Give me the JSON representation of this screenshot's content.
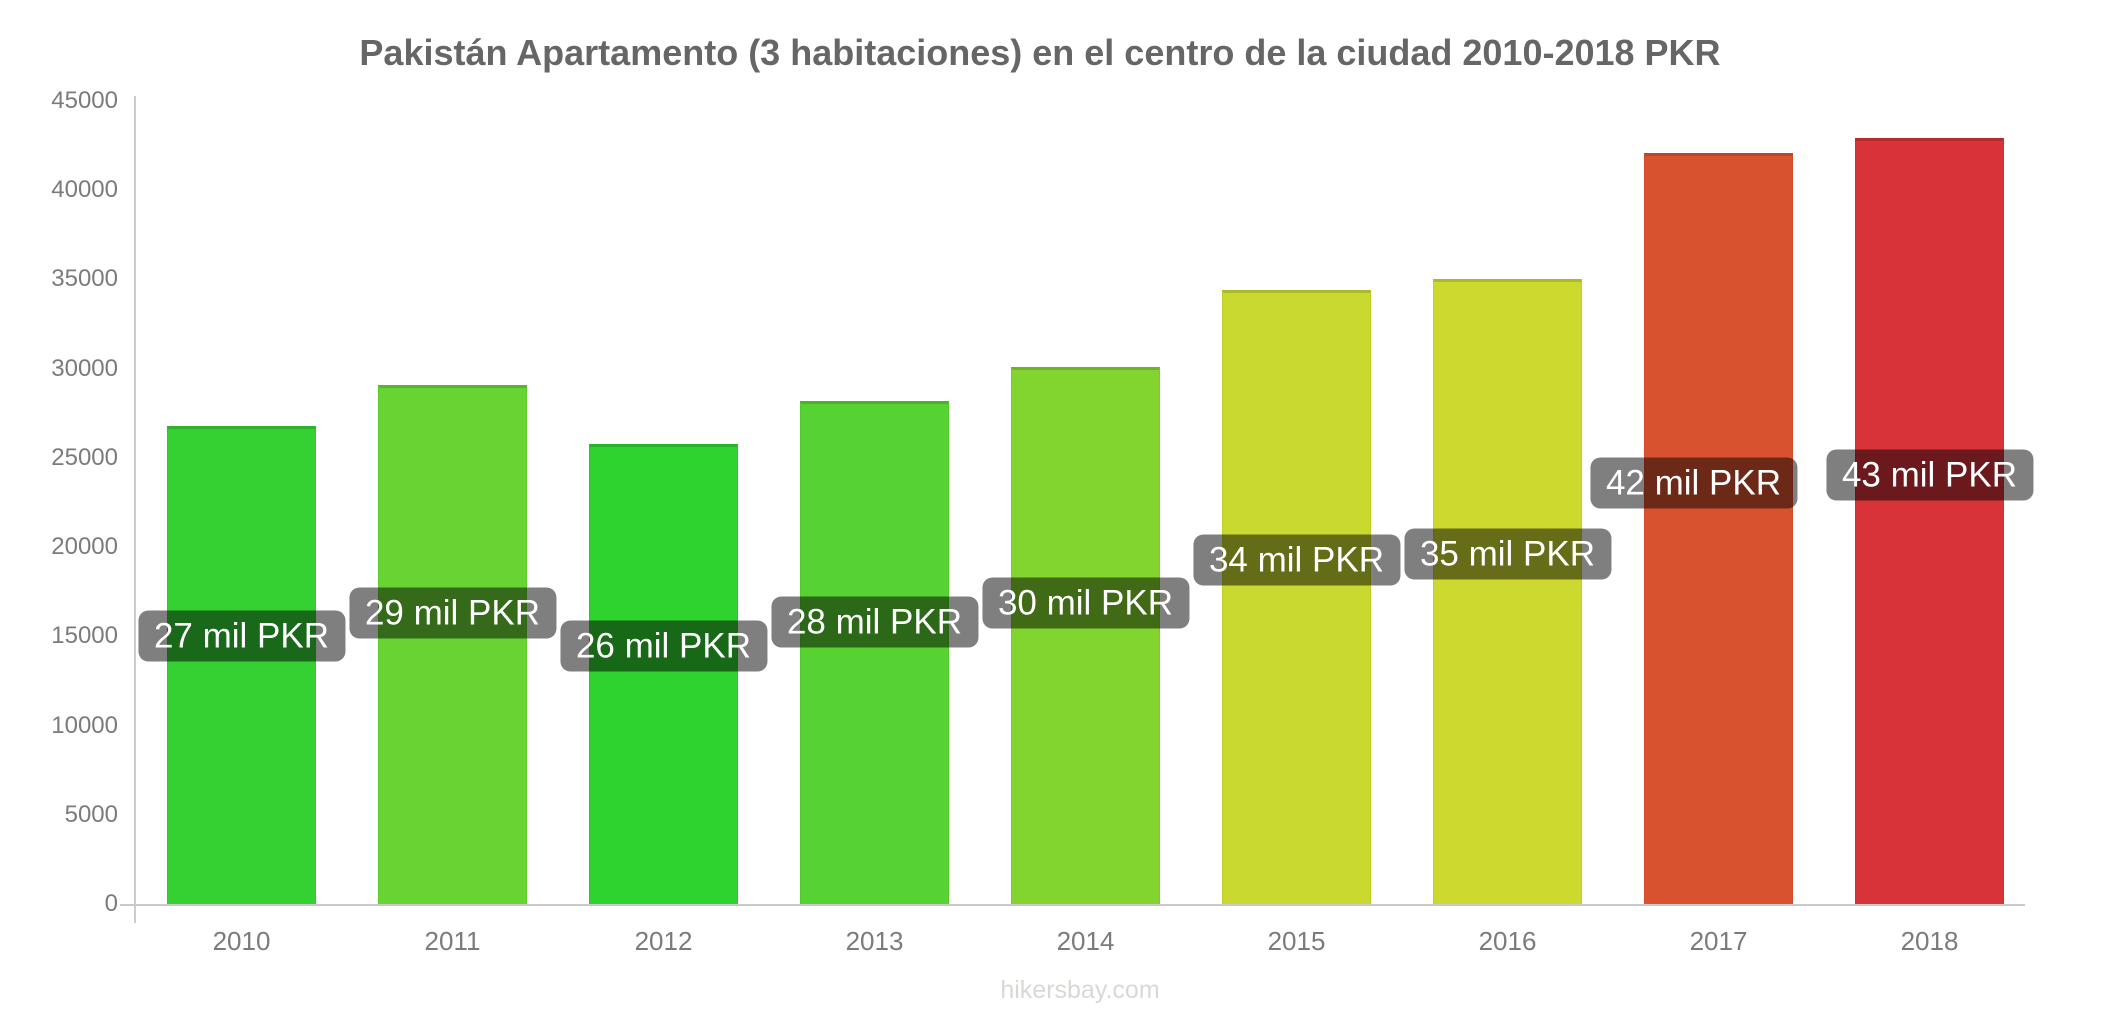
{
  "title": "Pakistán Apartamento (3 habitaciones) en el centro de la ciudad 2010-2018 PKR",
  "footer": "hikersbay.com",
  "chart_data": {
    "type": "bar",
    "title": "Pakistán Apartamento (3 habitaciones) en el centro de la ciudad 2010-2018 PKR",
    "xlabel": "",
    "ylabel": "",
    "categories": [
      "2010",
      "2011",
      "2012",
      "2013",
      "2014",
      "2015",
      "2016",
      "2017",
      "2018"
    ],
    "values": [
      26800,
      29100,
      25800,
      28200,
      30100,
      34400,
      35000,
      42100,
      42900
    ],
    "bar_labels": [
      "27 mil PKR",
      "29 mil PKR",
      "26 mil PKR",
      "28 mil PKR",
      "30 mil PKR",
      "34 mil PKR",
      "35 mil PKR",
      "42 mil PKR",
      "43 mil PKR"
    ],
    "bar_colors": [
      "#35d132",
      "#68d434",
      "#2fd32f",
      "#57d233",
      "#82d42e",
      "#c9d92f",
      "#cdd92e",
      "#d95230",
      "#d73338"
    ],
    "label_offsets_x": [
      0,
      0,
      0,
      0,
      0,
      0,
      0,
      -25,
      0
    ],
    "ylim": [
      0,
      45000
    ],
    "ytick_step": 5000,
    "ytick_labels": [
      "0",
      "5000",
      "10000",
      "15000",
      "20000",
      "25000",
      "30000",
      "35000",
      "40000",
      "45000"
    ],
    "grid": false,
    "legend": false,
    "currency": "PKR",
    "colors": {
      "axis": "#c9c9c9",
      "tick_text": "#7b7b7b",
      "title_text": "#666666",
      "footer_text": "#d8d8d4",
      "label_bg": "rgba(0,0,0,0.5)",
      "label_text": "#ffffff",
      "background": "#ffffff"
    }
  }
}
